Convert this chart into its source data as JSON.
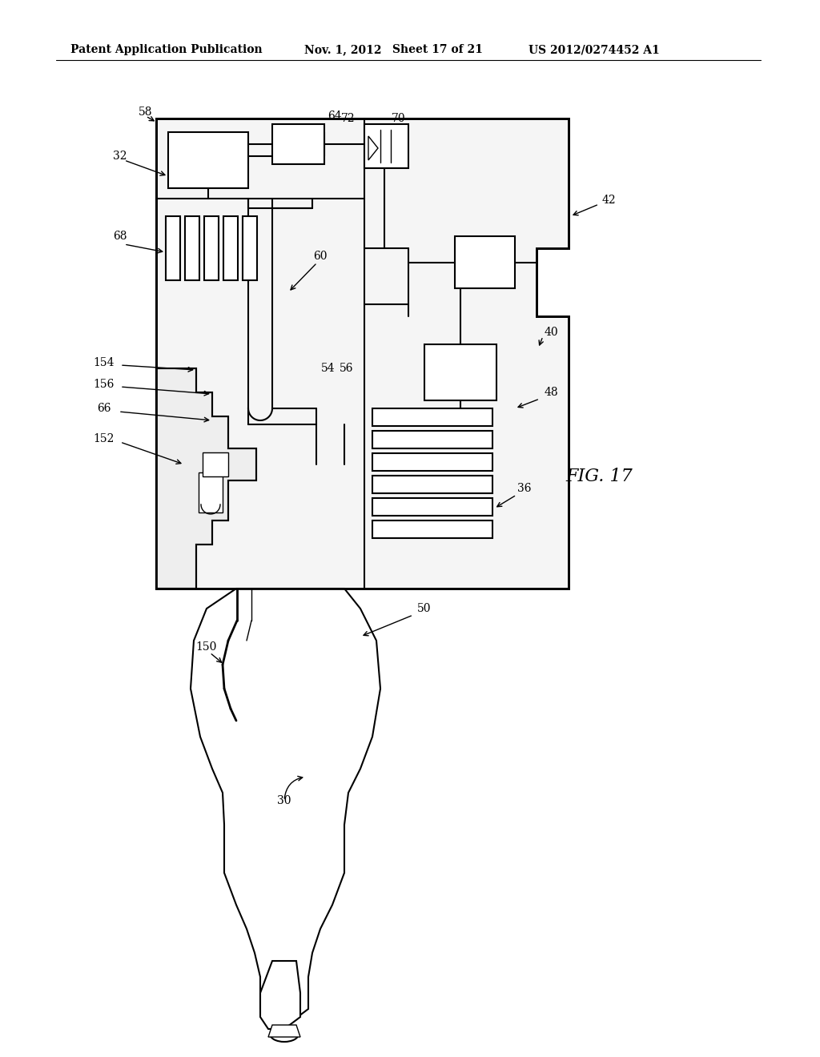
{
  "bg_color": "#ffffff",
  "line_color": "#000000",
  "header_text": "Patent Application Publication",
  "header_date": "Nov. 1, 2012",
  "header_sheet": "Sheet 17 of 21",
  "header_patent": "US 2012/0274452 A1",
  "fig_label": "FIG. 17"
}
